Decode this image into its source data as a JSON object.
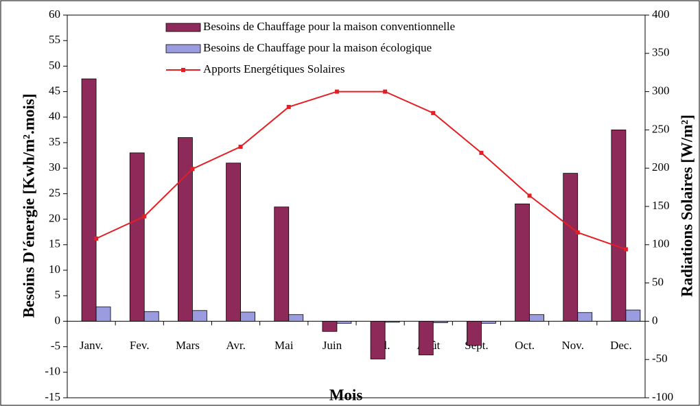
{
  "chart_data": {
    "type": "bar",
    "categories": [
      "Janv.",
      "Fev.",
      "Mars",
      "Avr.",
      "Mai",
      "Juin",
      "Juil.",
      "Août",
      "Sept.",
      "Oct.",
      "Nov.",
      "Dec."
    ],
    "xlabel": "Mois",
    "ylabel": "Besoins D'énergie [Kwh/m².mois]",
    "y2label": "Radiations Solaires [W/m²]",
    "series": [
      {
        "name": "Besoins de Chauffage pour la maison conventionnelle",
        "color": "#8e2a5a",
        "type": "bar",
        "values": [
          47.5,
          33,
          36,
          31,
          22.4,
          -2,
          -7.4,
          -6.6,
          -4.7,
          23,
          29,
          37.5
        ]
      },
      {
        "name": "Besoins de Chauffage pour la maison écologique",
        "color": "#9b9be0",
        "type": "bar",
        "values": [
          2.8,
          1.9,
          2.1,
          1.8,
          1.3,
          -0.4,
          -0.2,
          -0.3,
          -0.4,
          1.3,
          1.7,
          2.2
        ]
      },
      {
        "name": "Apports Energétiques Solaires",
        "color": "#e31e24",
        "type": "line",
        "axis": "y2",
        "values": [
          108,
          137,
          199,
          228,
          280,
          300,
          300,
          272,
          220,
          164,
          116,
          94
        ]
      }
    ],
    "ylim": [
      -15,
      60
    ],
    "yticks": [
      60,
      55,
      50,
      45,
      40,
      35,
      30,
      25,
      20,
      15,
      10,
      5,
      0,
      -5,
      -10,
      -15
    ],
    "y2lim": [
      -100,
      400
    ],
    "y2ticks": [
      400,
      350,
      300,
      250,
      200,
      150,
      100,
      50,
      0,
      -50,
      -100
    ],
    "legend": "upper center"
  }
}
